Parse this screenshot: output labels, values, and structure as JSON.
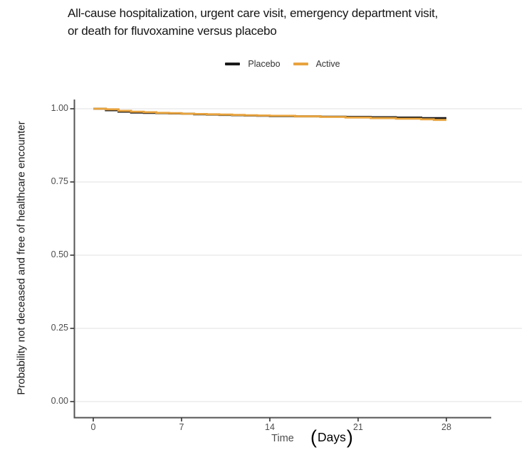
{
  "figure": {
    "title_line1": "All-cause hospitalization, urgent care visit, emergency department visit,",
    "title_line2": "or death for fluvoxamine versus placebo"
  },
  "legend": {
    "items": [
      {
        "label": "Placebo",
        "color": "#1A1A1A"
      },
      {
        "label": "Active",
        "color": "#E8A33D"
      }
    ]
  },
  "axes": {
    "y_title": "Probability not deceased and free of healthcare encounter",
    "x_title_main": "Time",
    "x_units_open": "(",
    "x_units_word": "Days",
    "x_units_close": ")",
    "y_ticks": [
      "1.00",
      "0.75",
      "0.50",
      "0.25",
      "0.00"
    ],
    "x_ticks": [
      "0",
      "7",
      "14",
      "21",
      "28"
    ]
  },
  "chart_data": {
    "type": "line",
    "variant": "kaplan-meier-step",
    "title": "All-cause hospitalization, urgent care visit, emergency department visit, or death for fluvoxamine versus placebo",
    "xlabel": "Time (Days)",
    "ylabel": "Probability not deceased and free of healthcare encounter",
    "xlim": [
      0,
      29.5
    ],
    "ylim": [
      0,
      1.0
    ],
    "xtick_values": [
      0,
      7,
      14,
      21,
      28
    ],
    "ytick_values": [
      1.0,
      0.75,
      0.5,
      0.25,
      0.0
    ],
    "grid": "horizontal major gridlines only, light gray",
    "legend_position": "top-center",
    "axis_color": "#555555",
    "gridline_color": "#ECECEC",
    "series": [
      {
        "name": "Placebo",
        "color": "#1A1A1A",
        "x": [
          0,
          1,
          2,
          3,
          4,
          5,
          6,
          7,
          8,
          9,
          10,
          11,
          12,
          13,
          14,
          16,
          18,
          20,
          22,
          24,
          26,
          27,
          28
        ],
        "y": [
          1.0,
          0.995,
          0.99,
          0.987,
          0.986,
          0.985,
          0.984,
          0.983,
          0.981,
          0.98,
          0.979,
          0.978,
          0.977,
          0.976,
          0.975,
          0.974,
          0.973,
          0.972,
          0.971,
          0.97,
          0.968,
          0.968,
          0.968
        ]
      },
      {
        "name": "Active",
        "color": "#E8A33D",
        "x": [
          0,
          1,
          2,
          3,
          4,
          5,
          6,
          7,
          8,
          9,
          10,
          11,
          12,
          13,
          14,
          16,
          18,
          20,
          22,
          24,
          26,
          27,
          28
        ],
        "y": [
          1.0,
          0.998,
          0.993,
          0.99,
          0.988,
          0.986,
          0.985,
          0.983,
          0.982,
          0.981,
          0.98,
          0.979,
          0.978,
          0.977,
          0.976,
          0.974,
          0.972,
          0.97,
          0.968,
          0.966,
          0.964,
          0.962,
          0.962
        ]
      }
    ]
  }
}
